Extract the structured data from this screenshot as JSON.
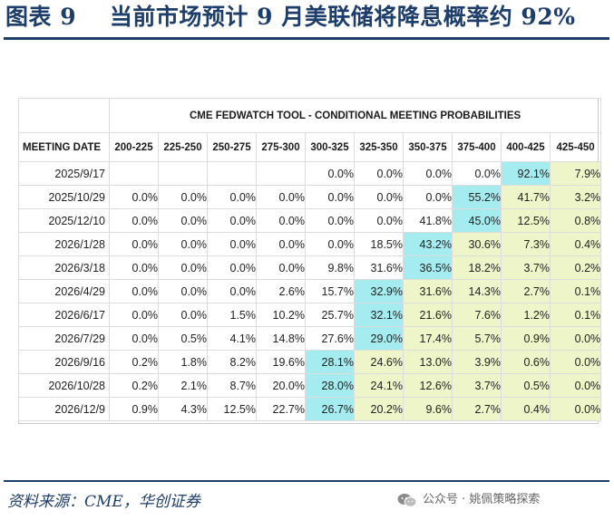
{
  "figure": {
    "title": "图表 9    当前市场预计 9 月美联储将降息概率约 92%",
    "source": "资料来源：CME，华创证券",
    "watermark": "公众号 · 姚佩策略探索",
    "watermark_icon": "wechat-icon"
  },
  "table": {
    "tool_title": "CME FEDWATCH TOOL - CONDITIONAL MEETING PROBABILITIES",
    "date_header": "MEETING DATE",
    "columns": [
      "200-225",
      "225-250",
      "250-275",
      "275-300",
      "300-325",
      "325-350",
      "350-375",
      "375-400",
      "400-425",
      "425-450"
    ],
    "rows": [
      {
        "date": "2025/9/17",
        "cells": [
          "",
          "",
          "",
          "",
          "0.0%",
          "0.0%",
          "0.0%",
          "0.0%",
          "92.1%",
          "7.9%"
        ],
        "shade": [
          "",
          "",
          "",
          "",
          "",
          "",
          "",
          "",
          "b",
          "y"
        ]
      },
      {
        "date": "2025/10/29",
        "cells": [
          "0.0%",
          "0.0%",
          "0.0%",
          "0.0%",
          "0.0%",
          "0.0%",
          "0.0%",
          "55.2%",
          "41.7%",
          "3.2%"
        ],
        "shade": [
          "",
          "",
          "",
          "",
          "",
          "",
          "",
          "b",
          "y",
          "y"
        ]
      },
      {
        "date": "2025/12/10",
        "cells": [
          "0.0%",
          "0.0%",
          "0.0%",
          "0.0%",
          "0.0%",
          "0.0%",
          "41.8%",
          "45.0%",
          "12.5%",
          "0.8%"
        ],
        "shade": [
          "",
          "",
          "",
          "",
          "",
          "",
          "",
          "b",
          "y",
          "y"
        ]
      },
      {
        "date": "2026/1/28",
        "cells": [
          "0.0%",
          "0.0%",
          "0.0%",
          "0.0%",
          "0.0%",
          "18.5%",
          "43.2%",
          "30.6%",
          "7.3%",
          "0.4%"
        ],
        "shade": [
          "",
          "",
          "",
          "",
          "",
          "",
          "b",
          "y",
          "y",
          "y"
        ]
      },
      {
        "date": "2026/3/18",
        "cells": [
          "0.0%",
          "0.0%",
          "0.0%",
          "0.0%",
          "9.8%",
          "31.6%",
          "36.5%",
          "18.2%",
          "3.7%",
          "0.2%"
        ],
        "shade": [
          "",
          "",
          "",
          "",
          "",
          "",
          "b",
          "y",
          "y",
          "y"
        ]
      },
      {
        "date": "2026/4/29",
        "cells": [
          "0.0%",
          "0.0%",
          "0.0%",
          "2.6%",
          "15.7%",
          "32.9%",
          "31.6%",
          "14.3%",
          "2.7%",
          "0.1%"
        ],
        "shade": [
          "",
          "",
          "",
          "",
          "",
          "b",
          "y",
          "y",
          "y",
          "y"
        ]
      },
      {
        "date": "2026/6/17",
        "cells": [
          "0.0%",
          "0.0%",
          "1.5%",
          "10.2%",
          "25.7%",
          "32.1%",
          "21.6%",
          "7.6%",
          "1.2%",
          "0.1%"
        ],
        "shade": [
          "",
          "",
          "",
          "",
          "",
          "b",
          "y",
          "y",
          "y",
          "y"
        ]
      },
      {
        "date": "2026/7/29",
        "cells": [
          "0.0%",
          "0.5%",
          "4.1%",
          "14.8%",
          "27.6%",
          "29.0%",
          "17.4%",
          "5.7%",
          "0.9%",
          "0.0%"
        ],
        "shade": [
          "",
          "",
          "",
          "",
          "",
          "b",
          "y",
          "y",
          "y",
          "y"
        ]
      },
      {
        "date": "2026/9/16",
        "cells": [
          "0.2%",
          "1.8%",
          "8.2%",
          "19.6%",
          "28.1%",
          "24.6%",
          "13.0%",
          "3.9%",
          "0.6%",
          "0.0%"
        ],
        "shade": [
          "",
          "",
          "",
          "",
          "b",
          "y",
          "y",
          "y",
          "y",
          "y"
        ]
      },
      {
        "date": "2026/10/28",
        "cells": [
          "0.2%",
          "2.1%",
          "8.7%",
          "20.0%",
          "28.0%",
          "24.1%",
          "12.6%",
          "3.7%",
          "0.5%",
          "0.0%"
        ],
        "shade": [
          "",
          "",
          "",
          "",
          "b",
          "y",
          "y",
          "y",
          "y",
          "y"
        ]
      },
      {
        "date": "2026/12/9",
        "cells": [
          "0.9%",
          "4.3%",
          "12.5%",
          "22.7%",
          "26.7%",
          "20.2%",
          "9.6%",
          "2.7%",
          "0.4%",
          "0.0%"
        ],
        "shade": [
          "",
          "",
          "",
          "",
          "b",
          "y",
          "y",
          "y",
          "y",
          "y"
        ]
      }
    ]
  }
}
